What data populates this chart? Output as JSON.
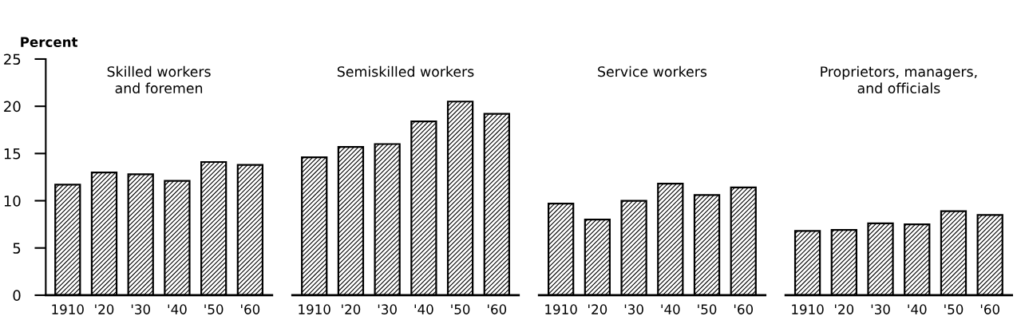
{
  "chart_data": [
    {
      "type": "bar",
      "title": "Skilled workers\nand foremen",
      "ylabel": "Percent",
      "categories": [
        "1910",
        "'20",
        "'30",
        "'40",
        "'50",
        "'60"
      ],
      "values": [
        11.7,
        13.0,
        12.8,
        12.1,
        14.1,
        13.8
      ],
      "color": "#000000",
      "ylim": [
        0,
        25
      ],
      "yticks": [
        0,
        5,
        10,
        15,
        20,
        25
      ],
      "grid": false,
      "legend": false
    },
    {
      "type": "bar",
      "title": "Semiskilled workers",
      "categories": [
        "1910",
        "'20",
        "'30",
        "'40",
        "'50",
        "'60"
      ],
      "values": [
        14.6,
        15.7,
        16.0,
        18.4,
        20.5,
        19.2
      ],
      "color": "#000000",
      "ylim": [
        0,
        25
      ],
      "tick_labels": "x",
      "grid": false,
      "legend": false
    },
    {
      "type": "bar",
      "title": "Service workers",
      "categories": [
        "1910",
        "'20",
        "'30",
        "'40",
        "'50",
        "'60"
      ],
      "values": [
        9.7,
        8.0,
        10.0,
        11.8,
        10.6,
        11.4
      ],
      "color": "#000000",
      "ylim": [
        0,
        25
      ],
      "tick_labels": "x",
      "grid": false,
      "legend": false
    },
    {
      "type": "bar",
      "title": "Proprietors, managers,\nand officials",
      "categories": [
        "1910",
        "'20",
        "'30",
        "'40",
        "'50",
        "'60"
      ],
      "values": [
        6.8,
        6.9,
        7.6,
        7.5,
        8.9,
        8.5
      ],
      "color": "#000000",
      "ylim": [
        0,
        25
      ],
      "tick_labels": "x",
      "grid": false,
      "legend": false
    }
  ]
}
